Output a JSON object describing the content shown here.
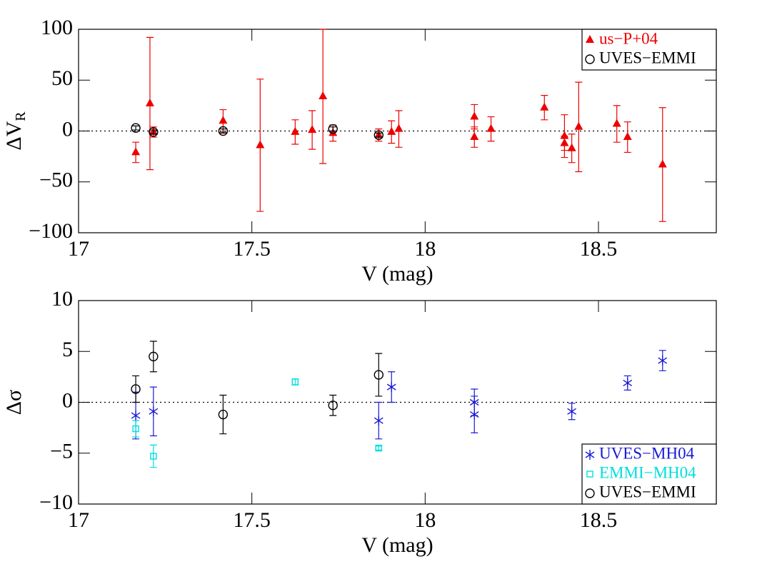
{
  "chart_data": [
    {
      "type": "scatter",
      "y_label": "ΔV",
      "y_label_subscript": "R",
      "x_label": "V (mag)",
      "xlim": [
        17,
        18.84
      ],
      "xticks": [
        17,
        17.5,
        18,
        18.5
      ],
      "ylim": [
        -100,
        100
      ],
      "yticks": [
        {
          "value": -100,
          "label": "−100"
        },
        {
          "value": -50,
          "label": "−50"
        },
        0,
        50,
        100
      ],
      "reference_line": 0,
      "legend": "upper right",
      "series": [
        {
          "name": "us−P+04",
          "color": "#ee0000",
          "marker": "triangle",
          "x": [
            17.165,
            17.206,
            17.216,
            17.417,
            17.524,
            17.625,
            17.674,
            17.705,
            17.734,
            17.866,
            17.903,
            17.924,
            18.142,
            18.142,
            18.19,
            18.344,
            18.402,
            18.402,
            18.423,
            18.443,
            18.553,
            18.584,
            18.685
          ],
          "values": [
            -21,
            27,
            -1,
            10,
            -14,
            -1,
            1,
            34,
            -2,
            -4,
            -1,
            2,
            14,
            -6,
            2,
            23,
            -5,
            -12,
            -17,
            4,
            7,
            -6,
            -33
          ],
          "errors": [
            10,
            65,
            5,
            11,
            65,
            12,
            19,
            66,
            8,
            6,
            11,
            18,
            12,
            10,
            12,
            12,
            21,
            7,
            14,
            44,
            18,
            15,
            56
          ]
        },
        {
          "name": "UVES−EMMI",
          "color": "#000000",
          "marker": "circle",
          "x": [
            17.165,
            17.216,
            17.417,
            17.734,
            17.866
          ],
          "values": [
            3,
            -1,
            0,
            2,
            -4
          ],
          "errors": [
            2,
            2,
            2,
            2,
            2
          ]
        }
      ]
    },
    {
      "type": "scatter",
      "y_label": "Δσ",
      "x_label": "V (mag)",
      "xlim": [
        17,
        18.84
      ],
      "xticks": [
        17,
        17.5,
        18,
        18.5
      ],
      "ylim": [
        -10,
        10
      ],
      "yticks": [
        {
          "value": -10,
          "label": "−10"
        },
        {
          "value": -5,
          "label": "−5"
        },
        0,
        5,
        10
      ],
      "reference_line": 0,
      "legend": "lower right",
      "series": [
        {
          "name": "UVES−MH04",
          "color": "#1a1ad6",
          "marker": "asterisk",
          "x": [
            17.165,
            17.216,
            17.866,
            17.903,
            18.142,
            18.142,
            18.423,
            18.584,
            18.685
          ],
          "values": [
            -1.3,
            -0.9,
            -1.8,
            1.5,
            0,
            -1.2,
            -0.9,
            1.9,
            4.1
          ],
          "errors": [
            2.3,
            2.4,
            1.8,
            1.5,
            1.3,
            1.8,
            0.8,
            0.7,
            1.0
          ]
        },
        {
          "name": "EMMI−MH04",
          "color": "#00dede",
          "marker": "square",
          "x": [
            17.165,
            17.216,
            17.625,
            17.866
          ],
          "values": [
            -2.6,
            -5.3,
            2.0,
            -4.5
          ],
          "errors": [
            0.8,
            1.1,
            0.3,
            0.2
          ]
        },
        {
          "name": "UVES−EMMI",
          "color": "#000000",
          "marker": "circle",
          "x": [
            17.165,
            17.216,
            17.417,
            17.734,
            17.866
          ],
          "values": [
            1.3,
            4.5,
            -1.2,
            -0.3,
            2.7
          ],
          "errors": [
            1.3,
            1.5,
            1.9,
            1.0,
            2.1
          ]
        }
      ]
    }
  ]
}
